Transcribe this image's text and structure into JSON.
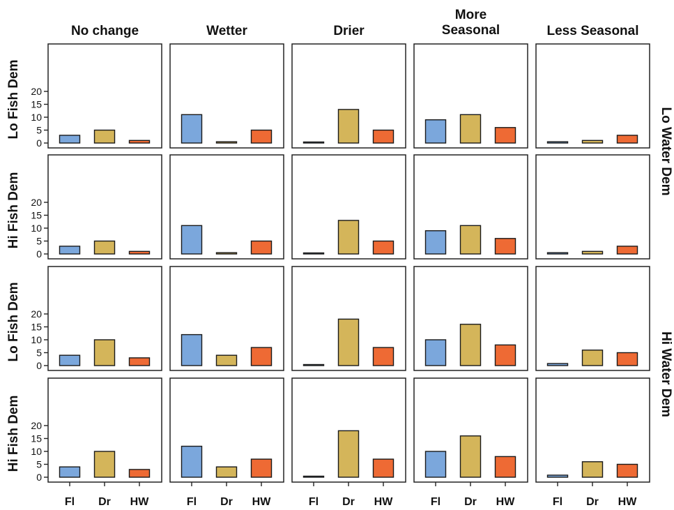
{
  "chart_data": {
    "type": "bar",
    "layout": "facet-grid",
    "columns": [
      {
        "title_lines": [
          "No change"
        ]
      },
      {
        "title_lines": [
          "Wetter"
        ]
      },
      {
        "title_lines": [
          "Drier"
        ]
      },
      {
        "title_lines": [
          "More",
          "Seasonal"
        ]
      },
      {
        "title_lines": [
          "Less Seasonal"
        ]
      }
    ],
    "row_groups": [
      {
        "label": "Lo Water Dem",
        "rows": [
          0,
          1
        ]
      },
      {
        "label": "Hi Water Dem",
        "rows": [
          2,
          3
        ]
      }
    ],
    "rows": [
      {
        "label": "Lo Fish Dem"
      },
      {
        "label": "Hi Fish Dem"
      },
      {
        "label": "Lo Fish Dem"
      },
      {
        "label": "Hi Fish Dem"
      }
    ],
    "categories": [
      "Fl",
      "Dr",
      "HW"
    ],
    "category_colors": [
      "#7BA7DC",
      "#D4B55A",
      "#EE6A34"
    ],
    "yticks": [
      0,
      5,
      10,
      15,
      20
    ],
    "ylim": [
      0,
      21
    ],
    "values": [
      [
        [
          3,
          5,
          1
        ],
        [
          11,
          0.5,
          5
        ],
        [
          0.2,
          13,
          5
        ],
        [
          9,
          11,
          6
        ],
        [
          0.5,
          1,
          3
        ]
      ],
      [
        [
          3,
          5,
          1
        ],
        [
          11,
          0.5,
          5
        ],
        [
          0.1,
          13,
          5
        ],
        [
          9,
          11,
          6
        ],
        [
          0.5,
          1,
          3
        ]
      ],
      [
        [
          4,
          10,
          3
        ],
        [
          12,
          4,
          7
        ],
        [
          0.4,
          18,
          7
        ],
        [
          10,
          16,
          8
        ],
        [
          0.8,
          6,
          5
        ]
      ],
      [
        [
          4,
          10,
          3
        ],
        [
          12,
          4,
          7
        ],
        [
          0.4,
          18,
          7
        ],
        [
          10,
          16,
          8
        ],
        [
          0.8,
          6,
          5
        ]
      ]
    ]
  }
}
